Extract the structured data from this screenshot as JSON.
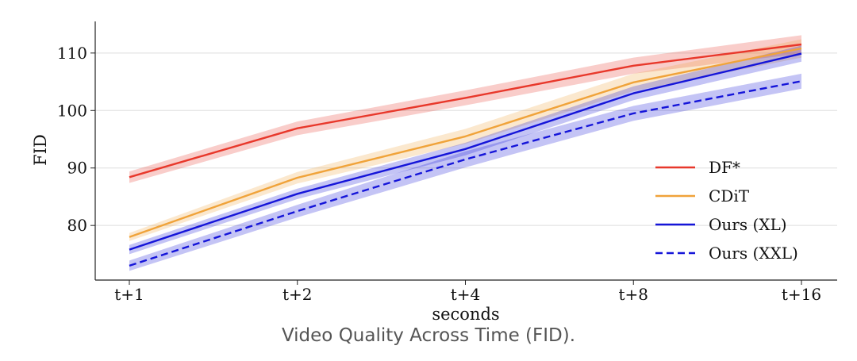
{
  "caption": "Video Quality Across Time (FID).",
  "chart_data": {
    "type": "line",
    "xlabel": "seconds",
    "ylabel": "FID",
    "categories": [
      "t+1",
      "t+2",
      "t+4",
      "t+8",
      "t+16"
    ],
    "ylim": [
      70.5,
      115.5
    ],
    "yticks": [
      80,
      90,
      100,
      110
    ],
    "grid": "horizontal",
    "legend_position": "lower-right",
    "series": [
      {
        "name": "DF*",
        "color": "#e8382b",
        "dash": "solid",
        "values": [
          88.4,
          96.9,
          102.2,
          107.8,
          111.5
        ],
        "band": [
          1.0,
          1.2,
          1.3,
          1.4,
          1.6
        ]
      },
      {
        "name": "CDiT",
        "color": "#f0a33a",
        "dash": "solid",
        "values": [
          78.0,
          88.3,
          95.5,
          104.9,
          110.8
        ],
        "band": [
          0.7,
          1.0,
          1.3,
          1.5,
          1.6
        ]
      },
      {
        "name": "Ours (XL)",
        "color": "#1515d9",
        "dash": "solid",
        "values": [
          75.8,
          85.5,
          93.3,
          103.0,
          109.9
        ],
        "band": [
          0.8,
          0.9,
          1.1,
          1.2,
          1.4
        ]
      },
      {
        "name": "Ours (XXL)",
        "color": "#1515d9",
        "dash": "dashed",
        "values": [
          73.0,
          82.5,
          91.5,
          99.5,
          105.1
        ],
        "band": [
          0.9,
          1.1,
          1.4,
          1.3,
          1.3
        ]
      }
    ]
  }
}
